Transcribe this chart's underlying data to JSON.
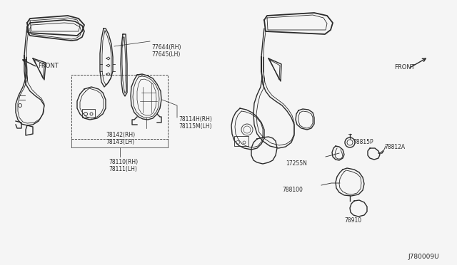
{
  "bg_color": "#f5f5f5",
  "line_color": "#2a2a2a",
  "text_color": "#2a2a2a",
  "watermark": "J780009U",
  "left_front_label": "FRONT",
  "right_front_label": "FRONT",
  "figsize": [
    6.4,
    3.72
  ],
  "dpi": 100
}
